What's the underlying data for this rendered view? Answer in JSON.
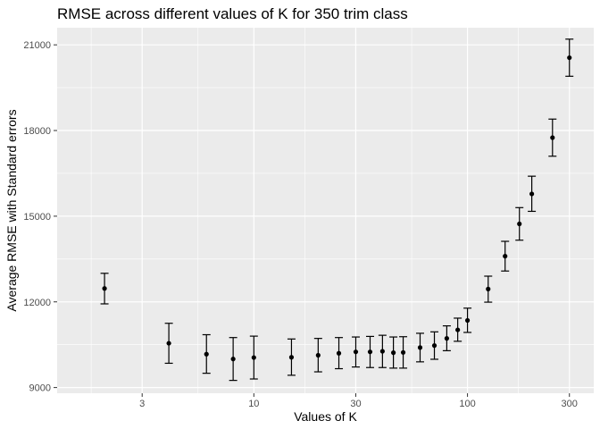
{
  "chart_data": {
    "type": "scatter",
    "title": "RMSE across different values of K for 350 trim class",
    "xlabel": "Values of K",
    "ylabel": "Average RMSE with Standard errors",
    "x_scale": "log10",
    "xlim": [
      1.2,
      390
    ],
    "ylim": [
      8800,
      21600
    ],
    "x_ticks": [
      3,
      10,
      30,
      100,
      300
    ],
    "x_tick_labels": [
      "3",
      "10",
      "30",
      "100",
      "300"
    ],
    "y_ticks": [
      9000,
      12000,
      15000,
      18000,
      21000
    ],
    "y_tick_labels": [
      "9000",
      "12000",
      "15000",
      "18000",
      "21000"
    ],
    "grid": true,
    "legend": "none",
    "colors": {
      "panel": "#ebebeb",
      "grid_major": "#ffffff",
      "grid_minor": "#f4f4f4",
      "point": "#000000",
      "tick_label": "#4d4d4d"
    },
    "points": [
      {
        "x": 2,
        "y": 12470,
        "ymin": 11930,
        "ymax": 13000
      },
      {
        "x": 4,
        "y": 10550,
        "ymin": 9850,
        "ymax": 11250
      },
      {
        "x": 6,
        "y": 10170,
        "ymin": 9500,
        "ymax": 10850
      },
      {
        "x": 8,
        "y": 10000,
        "ymin": 9250,
        "ymax": 10750
      },
      {
        "x": 10,
        "y": 10050,
        "ymin": 9300,
        "ymax": 10800
      },
      {
        "x": 15,
        "y": 10060,
        "ymin": 9430,
        "ymax": 10700
      },
      {
        "x": 20,
        "y": 10130,
        "ymin": 9550,
        "ymax": 10720
      },
      {
        "x": 25,
        "y": 10200,
        "ymin": 9660,
        "ymax": 10750
      },
      {
        "x": 30,
        "y": 10250,
        "ymin": 9720,
        "ymax": 10770
      },
      {
        "x": 35,
        "y": 10250,
        "ymin": 9700,
        "ymax": 10790
      },
      {
        "x": 40,
        "y": 10270,
        "ymin": 9700,
        "ymax": 10830
      },
      {
        "x": 45,
        "y": 10220,
        "ymin": 9680,
        "ymax": 10770
      },
      {
        "x": 50,
        "y": 10230,
        "ymin": 9680,
        "ymax": 10780
      },
      {
        "x": 60,
        "y": 10400,
        "ymin": 9900,
        "ymax": 10900
      },
      {
        "x": 70,
        "y": 10470,
        "ymin": 9990,
        "ymax": 10950
      },
      {
        "x": 80,
        "y": 10720,
        "ymin": 10290,
        "ymax": 11160
      },
      {
        "x": 90,
        "y": 11020,
        "ymin": 10620,
        "ymax": 11430
      },
      {
        "x": 100,
        "y": 11350,
        "ymin": 10930,
        "ymax": 11780
      },
      {
        "x": 125,
        "y": 12450,
        "ymin": 11990,
        "ymax": 12900
      },
      {
        "x": 150,
        "y": 13600,
        "ymin": 13080,
        "ymax": 14120
      },
      {
        "x": 175,
        "y": 14730,
        "ymin": 14160,
        "ymax": 15300
      },
      {
        "x": 200,
        "y": 15780,
        "ymin": 15170,
        "ymax": 16400
      },
      {
        "x": 250,
        "y": 17750,
        "ymin": 17100,
        "ymax": 18400
      },
      {
        "x": 300,
        "y": 20550,
        "ymin": 19900,
        "ymax": 21200
      }
    ]
  }
}
